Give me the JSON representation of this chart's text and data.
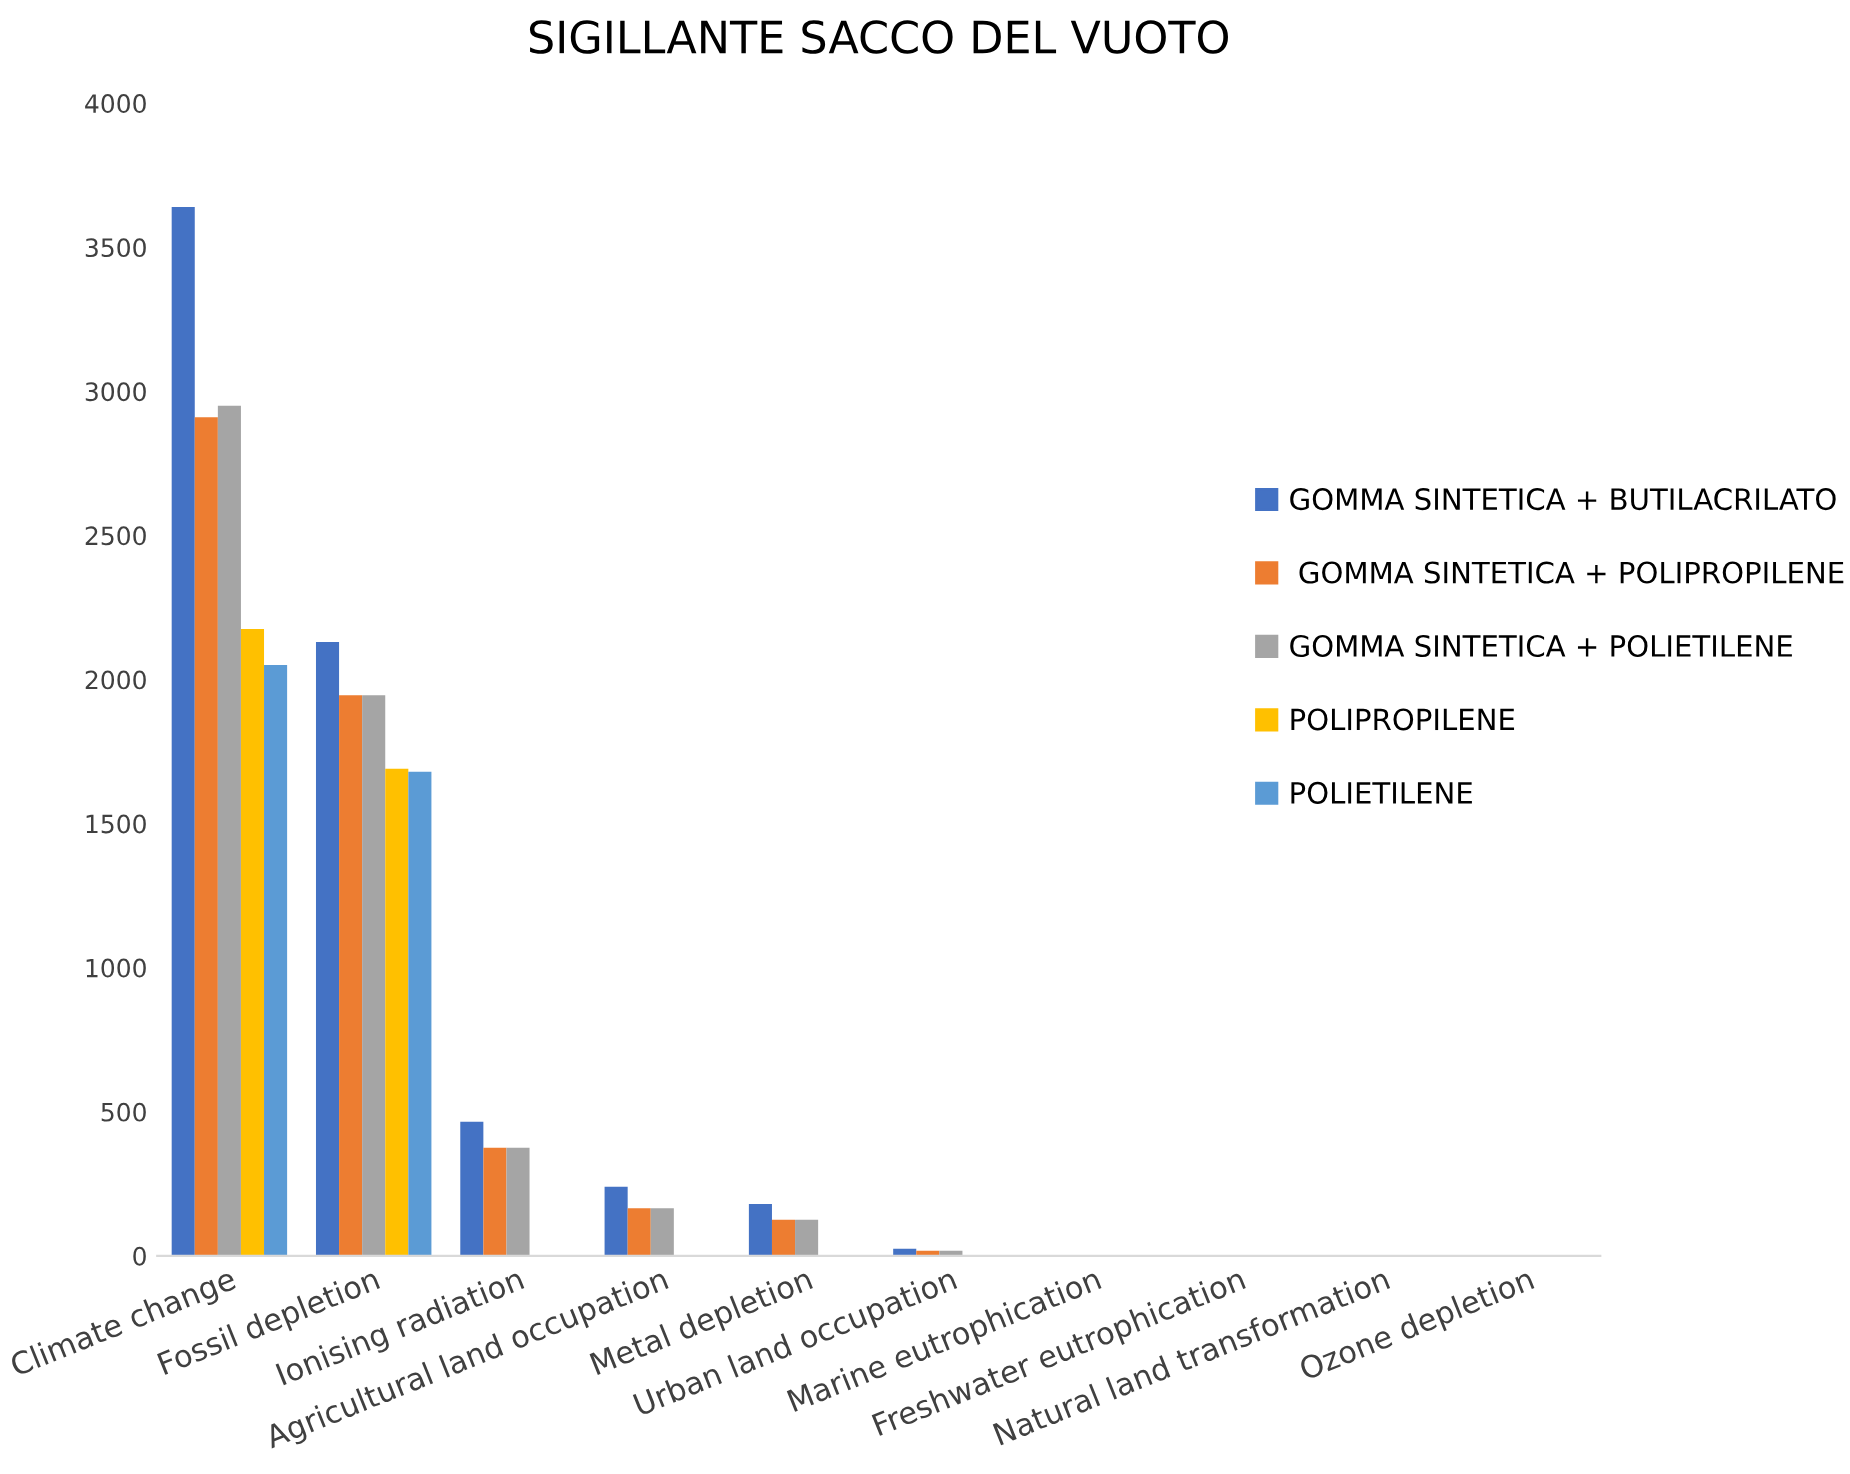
{
  "chart_data": {
    "type": "bar",
    "title": "SIGILLANTE SACCO DEL VUOTO",
    "categories": [
      "Climate change",
      "Fossil depletion",
      "Ionising radiation",
      "Agricultural land occupation",
      "Metal depletion",
      "Urban land occupation",
      "Marine eutrophication",
      "Freshwater eutrophication",
      "Natural land transformation",
      "Ozone depletion"
    ],
    "series": [
      {
        "name": "GOMMA SINTETICA + BUTILACRILATO",
        "color": "#4472c4",
        "values": [
          3640,
          2130,
          465,
          240,
          180,
          25,
          0,
          0,
          0,
          0
        ]
      },
      {
        "name": " GOMMA SINTETICA + POLIPROPILENE",
        "color": "#ed7d31",
        "values": [
          2910,
          1945,
          375,
          165,
          125,
          18,
          0,
          0,
          0,
          0
        ]
      },
      {
        "name": "GOMMA SINTETICA + POLIETILENE",
        "color": "#a5a5a5",
        "values": [
          2950,
          1945,
          375,
          165,
          125,
          18,
          0,
          0,
          0,
          0
        ]
      },
      {
        "name": "POLIPROPILENE",
        "color": "#ffc000",
        "values": [
          2175,
          1690,
          0,
          0,
          0,
          0,
          0,
          0,
          0,
          0
        ]
      },
      {
        "name": "POLIETILENE",
        "color": "#5b9bd5",
        "values": [
          2050,
          1680,
          0,
          0,
          0,
          0,
          0,
          0,
          0,
          0
        ]
      }
    ],
    "ylim": [
      0,
      4000
    ],
    "yticks": [
      0,
      500,
      1000,
      1500,
      2000,
      2500,
      3000,
      3500,
      4000
    ],
    "grid": false,
    "legend": "right"
  }
}
